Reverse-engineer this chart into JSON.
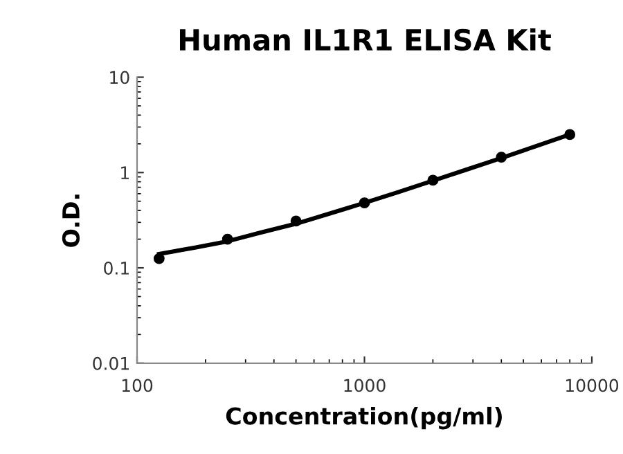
{
  "chart_data": {
    "type": "scatter",
    "title": "Human IL1R1 ELISA Kit",
    "xlabel": "Concentration(pg/ml)",
    "ylabel": "O.D.",
    "log": "xy",
    "x": [
      125,
      250,
      500,
      1000,
      2000,
      4000,
      8000
    ],
    "series": [
      {
        "color": "#000000",
        "marker": "circle",
        "values": [
          0.125,
          0.2,
          0.31,
          0.48,
          0.83,
          1.45,
          2.5
        ]
      },
      {
        "type": "line",
        "color": "#000000",
        "marker": "none",
        "line_style": "solid",
        "x": [
          125,
          180,
          250,
          350,
          500,
          700,
          1000,
          1400,
          2000,
          2800,
          4000,
          5600,
          8000
        ],
        "values": [
          0.14,
          0.163,
          0.19,
          0.235,
          0.29,
          0.37,
          0.48,
          0.62,
          0.82,
          1.07,
          1.42,
          1.87,
          2.5
        ]
      }
    ],
    "xlim": [
      100,
      10000
    ],
    "ylim": [
      0.01,
      10
    ],
    "xticks": [
      100,
      1000,
      10000
    ],
    "yticks": [
      0.01,
      0.1,
      1,
      10
    ],
    "grid": false,
    "legend": false
  }
}
